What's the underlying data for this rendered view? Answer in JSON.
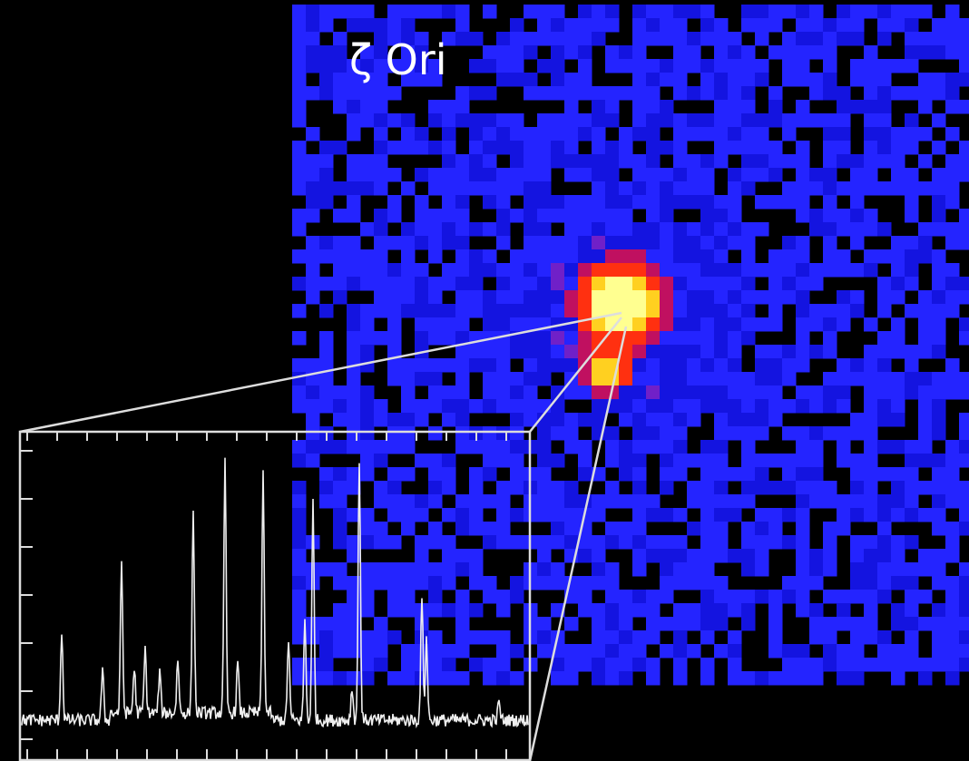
{
  "label": "ζ Ori"
}
